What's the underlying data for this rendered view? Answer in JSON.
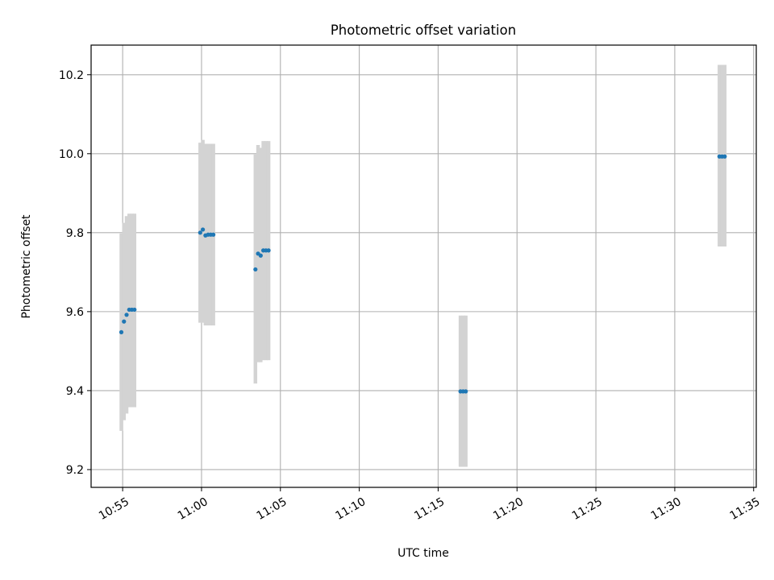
{
  "chart_data": {
    "type": "scatter",
    "title": "Photometric offset variation",
    "xlabel": "UTC time",
    "ylabel": "Photometric offset",
    "xlim": [
      "10:53:00",
      "11:35:10"
    ],
    "ylim": [
      9.155,
      10.275
    ],
    "x_ticks": [
      "10:55",
      "11:00",
      "11:05",
      "11:10",
      "11:15",
      "11:20",
      "11:25",
      "11:30",
      "11:35"
    ],
    "y_ticks": [
      "9.2",
      "9.4",
      "9.6",
      "9.8",
      "10.0",
      "10.2"
    ],
    "grid": true,
    "series": [
      {
        "marker_color": "#1f77b4",
        "errorbar_color": "#d3d3d3",
        "points": [
          {
            "t": "10:54:55",
            "y": 9.548,
            "lo": 9.298,
            "hi": 9.798
          },
          {
            "t": "10:55:05",
            "y": 9.575,
            "lo": 9.325,
            "hi": 9.825
          },
          {
            "t": "10:55:15",
            "y": 9.592,
            "lo": 9.342,
            "hi": 9.842
          },
          {
            "t": "10:55:25",
            "y": 9.605,
            "lo": 9.358,
            "hi": 9.848
          },
          {
            "t": "10:55:35",
            "y": 9.605,
            "lo": 9.358,
            "hi": 9.848
          },
          {
            "t": "10:55:45",
            "y": 9.605,
            "lo": 9.358,
            "hi": 9.848
          },
          {
            "t": "10:59:55",
            "y": 9.8,
            "lo": 9.572,
            "hi": 10.028
          },
          {
            "t": "11:00:05",
            "y": 9.808,
            "lo": 9.572,
            "hi": 10.035
          },
          {
            "t": "11:00:15",
            "y": 9.793,
            "lo": 9.565,
            "hi": 10.025
          },
          {
            "t": "11:00:25",
            "y": 9.795,
            "lo": 9.565,
            "hi": 10.025
          },
          {
            "t": "11:00:35",
            "y": 9.795,
            "lo": 9.565,
            "hi": 10.025
          },
          {
            "t": "11:00:45",
            "y": 9.795,
            "lo": 9.565,
            "hi": 10.025
          },
          {
            "t": "11:03:25",
            "y": 9.707,
            "lo": 9.418,
            "hi": 9.998
          },
          {
            "t": "11:03:35",
            "y": 9.747,
            "lo": 9.472,
            "hi": 10.022
          },
          {
            "t": "11:03:45",
            "y": 9.742,
            "lo": 9.472,
            "hi": 10.015
          },
          {
            "t": "11:03:55",
            "y": 9.755,
            "lo": 9.477,
            "hi": 10.032
          },
          {
            "t": "11:04:05",
            "y": 9.755,
            "lo": 9.477,
            "hi": 10.032
          },
          {
            "t": "11:04:15",
            "y": 9.755,
            "lo": 9.477,
            "hi": 10.032
          },
          {
            "t": "11:16:25",
            "y": 9.398,
            "lo": 9.207,
            "hi": 9.59
          },
          {
            "t": "11:16:35",
            "y": 9.398,
            "lo": 9.207,
            "hi": 9.59
          },
          {
            "t": "11:16:45",
            "y": 9.398,
            "lo": 9.207,
            "hi": 9.59
          },
          {
            "t": "11:32:50",
            "y": 9.993,
            "lo": 9.765,
            "hi": 10.225
          },
          {
            "t": "11:33:00",
            "y": 9.993,
            "lo": 9.765,
            "hi": 10.225
          },
          {
            "t": "11:33:10",
            "y": 9.993,
            "lo": 9.765,
            "hi": 10.225
          }
        ]
      }
    ]
  }
}
